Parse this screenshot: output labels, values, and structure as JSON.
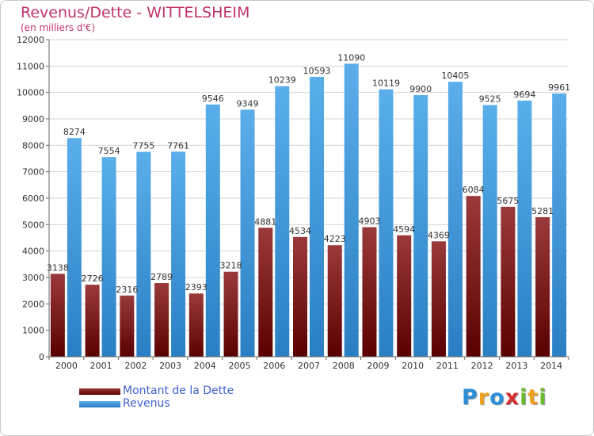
{
  "header": {
    "title": "Revenus/Dette - WITTELSHEIM",
    "subtitle": "(en milliers d'€)"
  },
  "colors": {
    "dette_top": "#9a3a3a",
    "dette_bottom": "#5a0000",
    "revenus_top": "#5aaeea",
    "revenus_bottom": "#2a7fc4",
    "grid": "#d6d6d6",
    "axis": "#666666",
    "label": "#333333",
    "title": "#c0336b",
    "legend_text": "#3c5fd0"
  },
  "legend": {
    "items": [
      {
        "label": "Montant de la Dette",
        "color": "#6a0a0a"
      },
      {
        "label": "Revenus",
        "color": "#4aa0e0"
      }
    ]
  },
  "logo": {
    "letters": [
      {
        "ch": "P",
        "color": "#2c8fd8"
      },
      {
        "ch": "r",
        "color": "#f0a020"
      },
      {
        "ch": "o",
        "color": "#2c8fd8"
      },
      {
        "ch": "x",
        "color": "#d42e2e"
      },
      {
        "ch": "i",
        "color": "#6cb82c"
      },
      {
        "ch": "t",
        "color": "#f0a020"
      },
      {
        "ch": "i",
        "color": "#6cb82c"
      }
    ]
  },
  "chart_data": {
    "type": "bar",
    "categories": [
      "2000",
      "2001",
      "2002",
      "2003",
      "2004",
      "2005",
      "2006",
      "2007",
      "2008",
      "2009",
      "2010",
      "2011",
      "2012",
      "2013",
      "2014"
    ],
    "series": [
      {
        "name": "Montant de la Dette",
        "values": [
          3138,
          2726,
          2316,
          2789,
          2393,
          3218,
          4881,
          4534,
          4223,
          4903,
          4594,
          4369,
          6084,
          5675,
          5281
        ],
        "labels": [
          "3138",
          "2726",
          "2316",
          "2789",
          "2393",
          "3218",
          "4881",
          "4534",
          "4223",
          "4903",
          "4594",
          "4369",
          "6084",
          "5675",
          "5281"
        ]
      },
      {
        "name": "Revenus",
        "values": [
          8274,
          7554,
          7755,
          7761,
          9546,
          9349,
          10239,
          10593,
          11090,
          10119,
          9900,
          10405,
          9525,
          9694,
          9961
        ],
        "labels": [
          "8274",
          "7554",
          "7755",
          "7761",
          "9546",
          "9349",
          "10239",
          "10593",
          "11090",
          "10119",
          "9900",
          "10405",
          "9525",
          "9694",
          "9961"
        ]
      }
    ],
    "ylim": [
      0,
      12000
    ],
    "yticks": [
      "0",
      "1000",
      "2000",
      "3000",
      "4000",
      "5000",
      "6000",
      "7000",
      "8000",
      "9000",
      "10000",
      "11000",
      "12000"
    ],
    "grid": true,
    "legend_position": "bottom-left"
  }
}
